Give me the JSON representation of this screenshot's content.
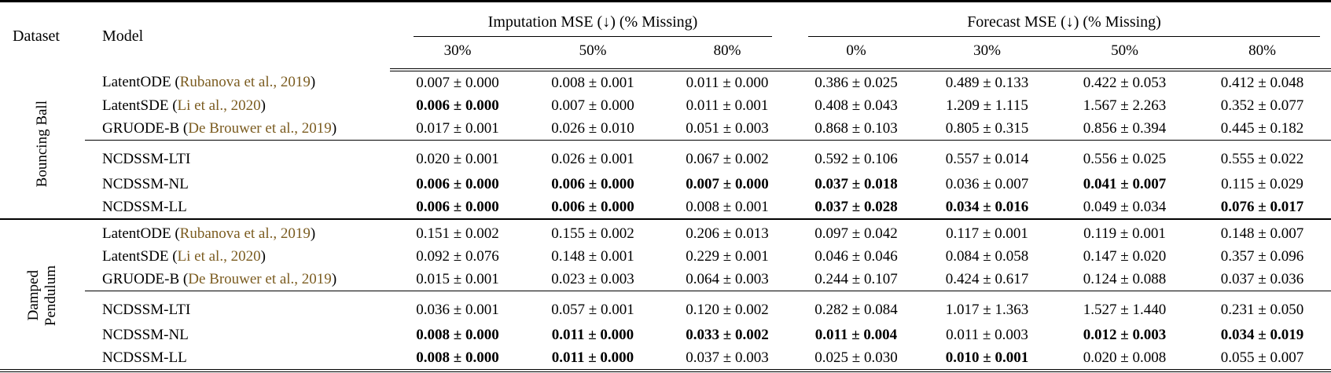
{
  "colors": {
    "citation": "#7b5c20",
    "text": "#000000",
    "background": "#ffffff"
  },
  "header": {
    "dataset": "Dataset",
    "model": "Model",
    "imputation_group": "Imputation MSE (↓) (% Missing)",
    "forecast_group": "Forecast MSE (↓) (% Missing)",
    "imputation_cols": [
      "30%",
      "50%",
      "80%"
    ],
    "forecast_cols": [
      "0%",
      "30%",
      "50%",
      "80%"
    ]
  },
  "blocks": [
    {
      "dataset": "Bouncing Ball",
      "dataset_lines": [
        "Bouncing Ball"
      ],
      "groups": [
        {
          "rows": [
            {
              "model": "LatentODE",
              "citation": "Rubanova et al., 2019",
              "cells": [
                {
                  "v": "0.007 ± 0.000",
                  "b": false
                },
                {
                  "v": "0.008 ± 0.001",
                  "b": false
                },
                {
                  "v": "0.011 ± 0.000",
                  "b": false
                },
                {
                  "v": "0.386 ± 0.025",
                  "b": false
                },
                {
                  "v": "0.489 ± 0.133",
                  "b": false
                },
                {
                  "v": "0.422 ± 0.053",
                  "b": false
                },
                {
                  "v": "0.412 ± 0.048",
                  "b": false
                }
              ]
            },
            {
              "model": "LatentSDE",
              "citation": "Li et al., 2020",
              "cells": [
                {
                  "v": "0.006 ± 0.000",
                  "b": true
                },
                {
                  "v": "0.007 ± 0.000",
                  "b": false
                },
                {
                  "v": "0.011 ± 0.001",
                  "b": false
                },
                {
                  "v": "0.408 ± 0.043",
                  "b": false
                },
                {
                  "v": "1.209 ± 1.115",
                  "b": false
                },
                {
                  "v": "1.567 ± 2.263",
                  "b": false
                },
                {
                  "v": "0.352 ± 0.077",
                  "b": false
                }
              ]
            },
            {
              "model": "GRUODE-B",
              "citation": "De Brouwer et al., 2019",
              "cells": [
                {
                  "v": "0.017 ± 0.001",
                  "b": false
                },
                {
                  "v": "0.026 ± 0.010",
                  "b": false
                },
                {
                  "v": "0.051 ± 0.003",
                  "b": false
                },
                {
                  "v": "0.868 ± 0.103",
                  "b": false
                },
                {
                  "v": "0.805 ± 0.315",
                  "b": false
                },
                {
                  "v": "0.856 ± 0.394",
                  "b": false
                },
                {
                  "v": "0.445 ± 0.182",
                  "b": false
                }
              ]
            }
          ]
        },
        {
          "rows": [
            {
              "model": "NCDSSM-LTI",
              "citation": null,
              "cells": [
                {
                  "v": "0.020 ± 0.001",
                  "b": false
                },
                {
                  "v": "0.026 ± 0.001",
                  "b": false
                },
                {
                  "v": "0.067 ± 0.002",
                  "b": false
                },
                {
                  "v": "0.592 ± 0.106",
                  "b": false
                },
                {
                  "v": "0.557 ± 0.014",
                  "b": false
                },
                {
                  "v": "0.556 ± 0.025",
                  "b": false
                },
                {
                  "v": "0.555 ± 0.022",
                  "b": false
                }
              ]
            },
            {
              "model": "NCDSSM-NL",
              "citation": null,
              "cells": [
                {
                  "v": "0.006 ± 0.000",
                  "b": true
                },
                {
                  "v": "0.006 ± 0.000",
                  "b": true
                },
                {
                  "v": "0.007 ± 0.000",
                  "b": true
                },
                {
                  "v": "0.037 ± 0.018",
                  "b": true
                },
                {
                  "v": "0.036 ± 0.007",
                  "b": false
                },
                {
                  "v": "0.041 ± 0.007",
                  "b": true
                },
                {
                  "v": "0.115 ± 0.029",
                  "b": false
                }
              ]
            },
            {
              "model": "NCDSSM-LL",
              "citation": null,
              "cells": [
                {
                  "v": "0.006 ± 0.000",
                  "b": true
                },
                {
                  "v": "0.006 ± 0.000",
                  "b": true
                },
                {
                  "v": "0.008 ± 0.001",
                  "b": false
                },
                {
                  "v": "0.037 ± 0.028",
                  "b": true
                },
                {
                  "v": "0.034 ± 0.016",
                  "b": true
                },
                {
                  "v": "0.049 ± 0.034",
                  "b": false
                },
                {
                  "v": "0.076 ± 0.017",
                  "b": true
                }
              ]
            }
          ]
        }
      ]
    },
    {
      "dataset": "Damped Pendulum",
      "dataset_lines": [
        "Damped",
        "Pendulum"
      ],
      "groups": [
        {
          "rows": [
            {
              "model": "LatentODE",
              "citation": "Rubanova et al., 2019",
              "cells": [
                {
                  "v": "0.151 ± 0.002",
                  "b": false
                },
                {
                  "v": "0.155 ± 0.002",
                  "b": false
                },
                {
                  "v": "0.206 ± 0.013",
                  "b": false
                },
                {
                  "v": "0.097 ± 0.042",
                  "b": false
                },
                {
                  "v": "0.117 ± 0.001",
                  "b": false
                },
                {
                  "v": "0.119 ± 0.001",
                  "b": false
                },
                {
                  "v": "0.148 ± 0.007",
                  "b": false
                }
              ]
            },
            {
              "model": "LatentSDE",
              "citation": "Li et al., 2020",
              "cells": [
                {
                  "v": "0.092 ± 0.076",
                  "b": false
                },
                {
                  "v": "0.148 ± 0.001",
                  "b": false
                },
                {
                  "v": "0.229 ± 0.001",
                  "b": false
                },
                {
                  "v": "0.046 ± 0.046",
                  "b": false
                },
                {
                  "v": "0.084 ± 0.058",
                  "b": false
                },
                {
                  "v": "0.147 ± 0.020",
                  "b": false
                },
                {
                  "v": "0.357 ± 0.096",
                  "b": false
                }
              ]
            },
            {
              "model": "GRUODE-B",
              "citation": "De Brouwer et al., 2019",
              "cells": [
                {
                  "v": "0.015 ± 0.001",
                  "b": false
                },
                {
                  "v": "0.023 ± 0.003",
                  "b": false
                },
                {
                  "v": "0.064 ± 0.003",
                  "b": false
                },
                {
                  "v": "0.244 ± 0.107",
                  "b": false
                },
                {
                  "v": "0.424 ± 0.617",
                  "b": false
                },
                {
                  "v": "0.124 ± 0.088",
                  "b": false
                },
                {
                  "v": "0.037 ± 0.036",
                  "b": false
                }
              ]
            }
          ]
        },
        {
          "rows": [
            {
              "model": "NCDSSM-LTI",
              "citation": null,
              "cells": [
                {
                  "v": "0.036 ± 0.001",
                  "b": false
                },
                {
                  "v": "0.057 ± 0.001",
                  "b": false
                },
                {
                  "v": "0.120 ± 0.002",
                  "b": false
                },
                {
                  "v": "0.282 ± 0.084",
                  "b": false
                },
                {
                  "v": "1.017 ± 1.363",
                  "b": false
                },
                {
                  "v": "1.527 ± 1.440",
                  "b": false
                },
                {
                  "v": "0.231 ± 0.050",
                  "b": false
                }
              ]
            },
            {
              "model": "NCDSSM-NL",
              "citation": null,
              "cells": [
                {
                  "v": "0.008 ± 0.000",
                  "b": true
                },
                {
                  "v": "0.011 ± 0.000",
                  "b": true
                },
                {
                  "v": "0.033 ± 0.002",
                  "b": true
                },
                {
                  "v": "0.011 ± 0.004",
                  "b": true
                },
                {
                  "v": "0.011 ± 0.003",
                  "b": false
                },
                {
                  "v": "0.012 ± 0.003",
                  "b": true
                },
                {
                  "v": "0.034 ± 0.019",
                  "b": true
                }
              ]
            },
            {
              "model": "NCDSSM-LL",
              "citation": null,
              "cells": [
                {
                  "v": "0.008 ± 0.000",
                  "b": true
                },
                {
                  "v": "0.011 ± 0.000",
                  "b": true
                },
                {
                  "v": "0.037 ± 0.003",
                  "b": false
                },
                {
                  "v": "0.025 ± 0.030",
                  "b": false
                },
                {
                  "v": "0.010 ± 0.001",
                  "b": true
                },
                {
                  "v": "0.020 ± 0.008",
                  "b": false
                },
                {
                  "v": "0.055 ± 0.007",
                  "b": false
                }
              ]
            }
          ]
        }
      ]
    }
  ]
}
